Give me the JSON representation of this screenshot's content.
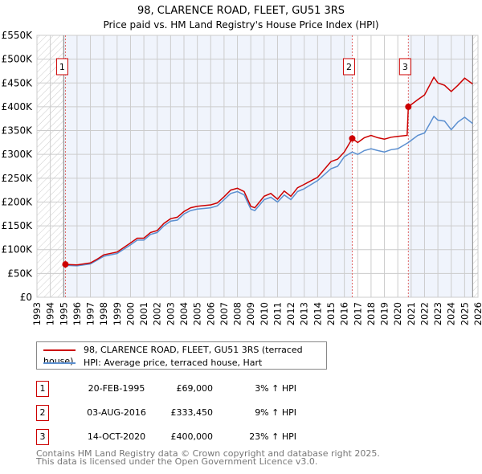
{
  "chart_data": {
    "type": "line",
    "title": "98, CLARENCE ROAD, FLEET, GU51 3RS",
    "subtitle": "Price paid vs. HM Land Registry's House Price Index (HPI)",
    "xlim": [
      1993,
      2026
    ],
    "ylim": [
      0,
      550000
    ],
    "x_ticks": [
      "1993",
      "1994",
      "1995",
      "1996",
      "1997",
      "1998",
      "1999",
      "2000",
      "2001",
      "2002",
      "2003",
      "2004",
      "2005",
      "2006",
      "2007",
      "2008",
      "2009",
      "2010",
      "2011",
      "2012",
      "2013",
      "2014",
      "2015",
      "2016",
      "2017",
      "2018",
      "2019",
      "2020",
      "2021",
      "2022",
      "2023",
      "2024",
      "2025",
      "2026"
    ],
    "y_ticks": [
      {
        "value": 0,
        "label": "£0"
      },
      {
        "value": 50000,
        "label": "£50K"
      },
      {
        "value": 100000,
        "label": "£100K"
      },
      {
        "value": 150000,
        "label": "£150K"
      },
      {
        "value": 200000,
        "label": "£200K"
      },
      {
        "value": 250000,
        "label": "£250K"
      },
      {
        "value": 300000,
        "label": "£300K"
      },
      {
        "value": 350000,
        "label": "£350K"
      },
      {
        "value": 400000,
        "label": "£400K"
      },
      {
        "value": 450000,
        "label": "£450K"
      },
      {
        "value": 500000,
        "label": "£500K"
      },
      {
        "value": 550000,
        "label": "£550K"
      }
    ],
    "grid": true,
    "data_range": [
      1995,
      2025.6
    ],
    "series": [
      {
        "name": "98, CLARENCE ROAD, FLEET, GU51 3RS (terraced house)",
        "color": "#cc0000",
        "x": [
          1995.13,
          1996,
          1997,
          1997.5,
          1998,
          1999,
          2000,
          2000.5,
          2001,
          2001.5,
          2002,
          2002.5,
          2003,
          2003.5,
          2004,
          2004.5,
          2005,
          2006,
          2006.5,
          2007,
          2007.5,
          2008,
          2008.5,
          2009,
          2009.3,
          2010,
          2010.5,
          2011,
          2011.5,
          2012,
          2012.5,
          2013,
          2014,
          2015,
          2015.5,
          2016,
          2016.59,
          2017,
          2017.5,
          2018,
          2018.5,
          2019,
          2019.5,
          2020,
          2020.7,
          2020.79,
          2021.5,
          2022,
          2022.7,
          2023,
          2023.5,
          2024,
          2024.5,
          2025,
          2025.6
        ],
        "y": [
          69000,
          68000,
          72000,
          80000,
          89000,
          95000,
          114000,
          124000,
          124000,
          136000,
          140000,
          155000,
          165000,
          168000,
          180000,
          188000,
          191000,
          194000,
          198000,
          211000,
          225000,
          229000,
          222000,
          191000,
          188000,
          212000,
          218000,
          206000,
          223000,
          212000,
          230000,
          237000,
          252000,
          285000,
          290000,
          305000,
          333450,
          325000,
          335000,
          340000,
          335000,
          332000,
          336000,
          338000,
          340000,
          400000,
          415000,
          425000,
          462000,
          450000,
          445000,
          432000,
          445000,
          460000,
          448000
        ]
      },
      {
        "name": "HPI: Average price, terraced house, Hart",
        "color": "#5b8fd0",
        "x": [
          1995.13,
          1996,
          1997,
          1997.5,
          1998,
          1999,
          2000,
          2000.5,
          2001,
          2001.5,
          2002,
          2002.5,
          2003,
          2003.5,
          2004,
          2004.5,
          2005,
          2006,
          2006.5,
          2007,
          2007.5,
          2008,
          2008.5,
          2009,
          2009.3,
          2010,
          2010.5,
          2011,
          2011.5,
          2012,
          2012.5,
          2013,
          2014,
          2015,
          2015.5,
          2016,
          2016.59,
          2017,
          2017.5,
          2018,
          2018.5,
          2019,
          2019.5,
          2020,
          2020.79,
          2021.5,
          2022,
          2022.7,
          2023,
          2023.5,
          2024,
          2024.5,
          2025,
          2025.6
        ],
        "y": [
          67000,
          66000,
          70000,
          78000,
          86000,
          92000,
          110000,
          120000,
          120000,
          132000,
          136000,
          150000,
          160000,
          162000,
          175000,
          182000,
          185000,
          188000,
          192000,
          205000,
          218000,
          222000,
          215000,
          185000,
          182000,
          205000,
          210000,
          200000,
          215000,
          205000,
          222000,
          228000,
          245000,
          270000,
          275000,
          295000,
          305000,
          300000,
          308000,
          312000,
          308000,
          305000,
          310000,
          312000,
          325000,
          340000,
          345000,
          380000,
          372000,
          370000,
          352000,
          368000,
          378000,
          365000
        ]
      }
    ],
    "sales": [
      {
        "id": "1",
        "x": 1995.13,
        "price": 69000
      },
      {
        "id": "2",
        "x": 2016.59,
        "price": 333450
      },
      {
        "id": "3",
        "x": 2020.79,
        "price": 400000
      }
    ]
  },
  "legend": {
    "property": "98, CLARENCE ROAD, FLEET, GU51 3RS (terraced house)",
    "hpi": "HPI: Average price, terraced house, Hart"
  },
  "transactions": [
    {
      "num": "1",
      "date": "20-FEB-1995",
      "price": "£69,000",
      "hpi": "3% ↑ HPI"
    },
    {
      "num": "2",
      "date": "03-AUG-2016",
      "price": "£333,450",
      "hpi": "9% ↑ HPI"
    },
    {
      "num": "3",
      "date": "14-OCT-2020",
      "price": "£400,000",
      "hpi": "23% ↑ HPI"
    }
  ],
  "footer": {
    "line1": "Contains HM Land Registry data © Crown copyright and database right 2025.",
    "line2": "This data is licensed under the Open Government Licence v3.0."
  }
}
